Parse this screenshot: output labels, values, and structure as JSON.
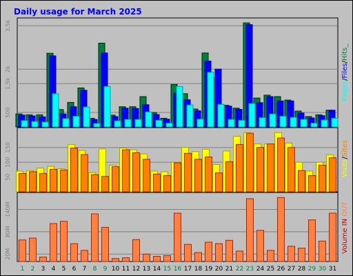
{
  "chart_data": [
    {
      "type": "bar",
      "panel": "top",
      "title": "Daily usage for March 2025",
      "categories": [
        "1",
        "2",
        "3",
        "4",
        "5",
        "6",
        "7",
        "8",
        "9",
        "10",
        "11",
        "12",
        "13",
        "14",
        "15",
        "16",
        "17",
        "18",
        "19",
        "20",
        "21",
        "22",
        "23",
        "24",
        "25",
        "26",
        "27",
        "28",
        "29",
        "30",
        "31"
      ],
      "weekend_days": [
        "1",
        "2",
        "8",
        "9",
        "15",
        "16",
        "22",
        "23",
        "29",
        "30"
      ],
      "series": [
        {
          "name": "Hits",
          "color": "#008040",
          "values": [
            450,
            420,
            420,
            2550,
            600,
            850,
            1350,
            300,
            2900,
            410,
            700,
            700,
            1050,
            500,
            300,
            1470,
            1150,
            620,
            2560,
            1700,
            750,
            650,
            3600,
            1000,
            1100,
            1050,
            930,
            550,
            360,
            420,
            580
          ]
        },
        {
          "name": "Files",
          "color": "#0000ff",
          "values": [
            410,
            380,
            350,
            2460,
            450,
            700,
            1270,
            260,
            2560,
            360,
            650,
            640,
            770,
            430,
            270,
            1170,
            940,
            560,
            2280,
            2000,
            720,
            610,
            3540,
            840,
            1050,
            900,
            900,
            480,
            310,
            390,
            580
          ]
        },
        {
          "name": "Pages",
          "color": "#00ffff",
          "values": [
            220,
            190,
            170,
            1150,
            290,
            370,
            690,
            120,
            1400,
            210,
            260,
            260,
            520,
            230,
            130,
            1400,
            760,
            270,
            1890,
            780,
            260,
            230,
            810,
            320,
            450,
            370,
            330,
            260,
            130,
            240,
            300
          ]
        }
      ],
      "legend": [
        "Pages",
        "/",
        "Files",
        "/",
        "Hits",
        "_"
      ],
      "ytick_labels": [
        "500",
        "1,5k",
        "2k",
        "3,5k"
      ],
      "ytick_values": [
        500,
        1500,
        2000,
        3500
      ],
      "ylim": [
        0,
        3700
      ]
    },
    {
      "type": "bar",
      "panel": "middle",
      "categories": [
        "1",
        "2",
        "3",
        "4",
        "5",
        "6",
        "7",
        "8",
        "9",
        "10",
        "11",
        "12",
        "13",
        "14",
        "15",
        "16",
        "17",
        "18",
        "19",
        "20",
        "21",
        "22",
        "23",
        "24",
        "25",
        "26",
        "27",
        "28",
        "29",
        "30",
        "31"
      ],
      "series": [
        {
          "name": "Visits",
          "color": "#ffff00",
          "values": [
            70,
            72,
            80,
            86,
            78,
            160,
            140,
            65,
            145,
            90,
            148,
            142,
            128,
            70,
            68,
            100,
            150,
            136,
            144,
            92,
            138,
            188,
            200,
            162,
            162,
            200,
            165,
            100,
            70,
            100,
            125
          ]
        },
        {
          "name": "Sites",
          "color": "#ff8000",
          "values": [
            62,
            68,
            62,
            76,
            74,
            148,
            126,
            58,
            52,
            85,
            142,
            132,
            110,
            60,
            55,
            98,
            130,
            110,
            118,
            64,
            102,
            160,
            198,
            150,
            162,
            182,
            150,
            72,
            55,
            90,
            115
          ]
        }
      ],
      "legend": [
        "Visits",
        "/",
        "Sites"
      ],
      "ytick_labels": [
        "50",
        "100",
        "150"
      ],
      "ytick_values": [
        50,
        100,
        150
      ],
      "ylim": [
        0,
        210
      ]
    },
    {
      "type": "bar",
      "panel": "bottom",
      "categories": [
        "1",
        "2",
        "3",
        "4",
        "5",
        "6",
        "7",
        "8",
        "9",
        "10",
        "11",
        "12",
        "13",
        "14",
        "15",
        "16",
        "17",
        "18",
        "19",
        "20",
        "21",
        "22",
        "23",
        "24",
        "25",
        "26",
        "27",
        "28",
        "29",
        "30",
        "31"
      ],
      "series": [
        {
          "name": "IN",
          "color": "#c00000",
          "values": [
            0,
            0,
            0,
            0,
            0,
            0,
            0,
            0,
            0,
            0,
            0,
            0,
            0,
            0,
            0,
            0,
            0,
            0,
            0,
            0,
            0,
            0,
            0,
            0,
            0,
            0,
            0,
            0,
            0,
            0,
            0
          ]
        },
        {
          "name": "OUT",
          "color": "#ff8040",
          "values": [
            58,
            63,
            12,
            102,
            108,
            48,
            30,
            128,
            92,
            8,
            10,
            59,
            20,
            14,
            16,
            130,
            46,
            24,
            52,
            48,
            57,
            28,
            169,
            84,
            30,
            172,
            41,
            36,
            112,
            55,
            130
          ]
        }
      ],
      "legend": [
        "Volume",
        " ",
        "IN",
        " ",
        "OUT"
      ],
      "ytick_labels": [
        "20M",
        "80M",
        "140M"
      ],
      "ytick_values": [
        20,
        80,
        140
      ],
      "ylim": [
        0,
        180
      ]
    }
  ]
}
